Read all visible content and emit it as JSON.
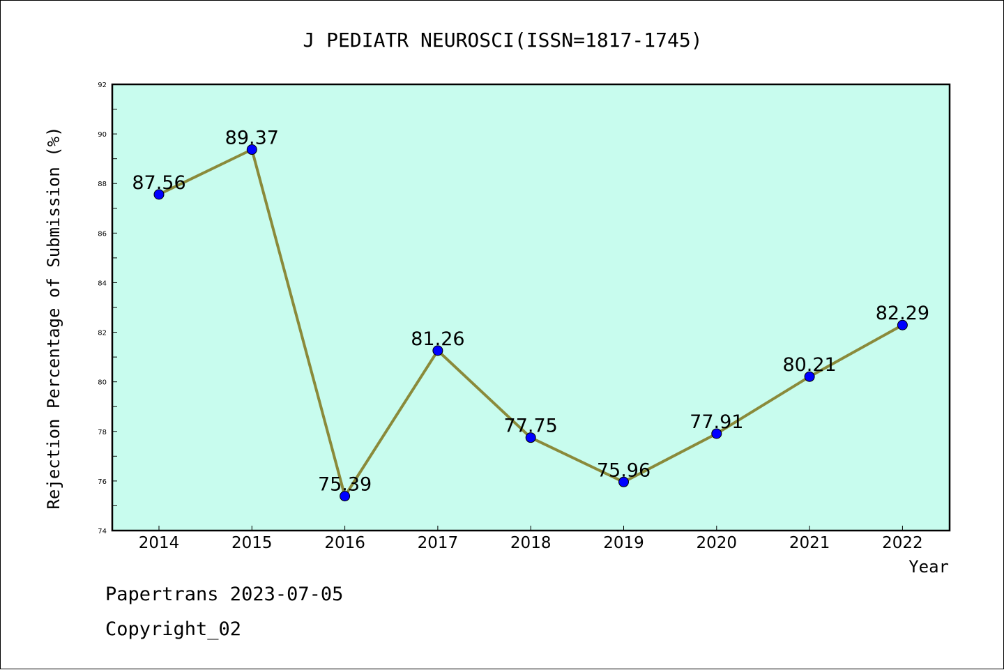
{
  "chart_data": {
    "type": "line",
    "title": "J PEDIATR NEUROSCI(ISSN=1817-1745)",
    "xlabel": "Year",
    "ylabel": "Rejection Percentage of Submission (%)",
    "categories": [
      "2014",
      "2015",
      "2016",
      "2017",
      "2018",
      "2019",
      "2020",
      "2021",
      "2022"
    ],
    "series": [
      {
        "values": [
          87.56,
          89.37,
          75.39,
          81.26,
          77.75,
          75.96,
          77.91,
          80.21,
          82.29
        ],
        "labels": [
          "87.56",
          "89.37",
          "75.39",
          "81.26",
          "77.75",
          "75.96",
          "77.91",
          "80.21",
          "82.29"
        ]
      }
    ],
    "ylim": [
      74,
      92
    ],
    "yticks": [
      "74",
      "76",
      "78",
      "80",
      "82",
      "84",
      "86",
      "88",
      "90",
      "92"
    ],
    "grid": false,
    "legend": "none",
    "colors": {
      "plot_background": "#c8fcee",
      "line": "#8a8a3a",
      "marker": "#0000ff"
    }
  },
  "footer": {
    "line1": "Papertrans 2023-07-05",
    "line2": "Copyright_02"
  }
}
